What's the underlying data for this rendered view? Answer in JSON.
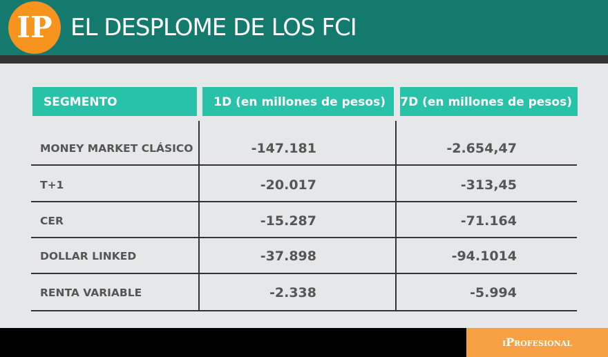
{
  "header": {
    "logo": "IP",
    "title": "EL DESPLOME DE LOS FCI"
  },
  "table": {
    "columns": [
      "SEGMENTO",
      "1D (en millones de pesos)",
      "7D (en millones de pesos)"
    ],
    "rows": [
      [
        "MONEY MARKET CLÁSICO",
        "-147.181",
        "-2.654,47"
      ],
      [
        "T+1",
        "-20.017",
        "-313,45"
      ],
      [
        "CER",
        "-15.287",
        "-71.164"
      ],
      [
        "DOLLAR LINKED",
        "-37.898",
        "-94.1014"
      ],
      [
        "RENTA VARIABLE",
        "-2.338",
        "-5.994"
      ]
    ]
  },
  "footer": {
    "brand": "iProfesional"
  }
}
